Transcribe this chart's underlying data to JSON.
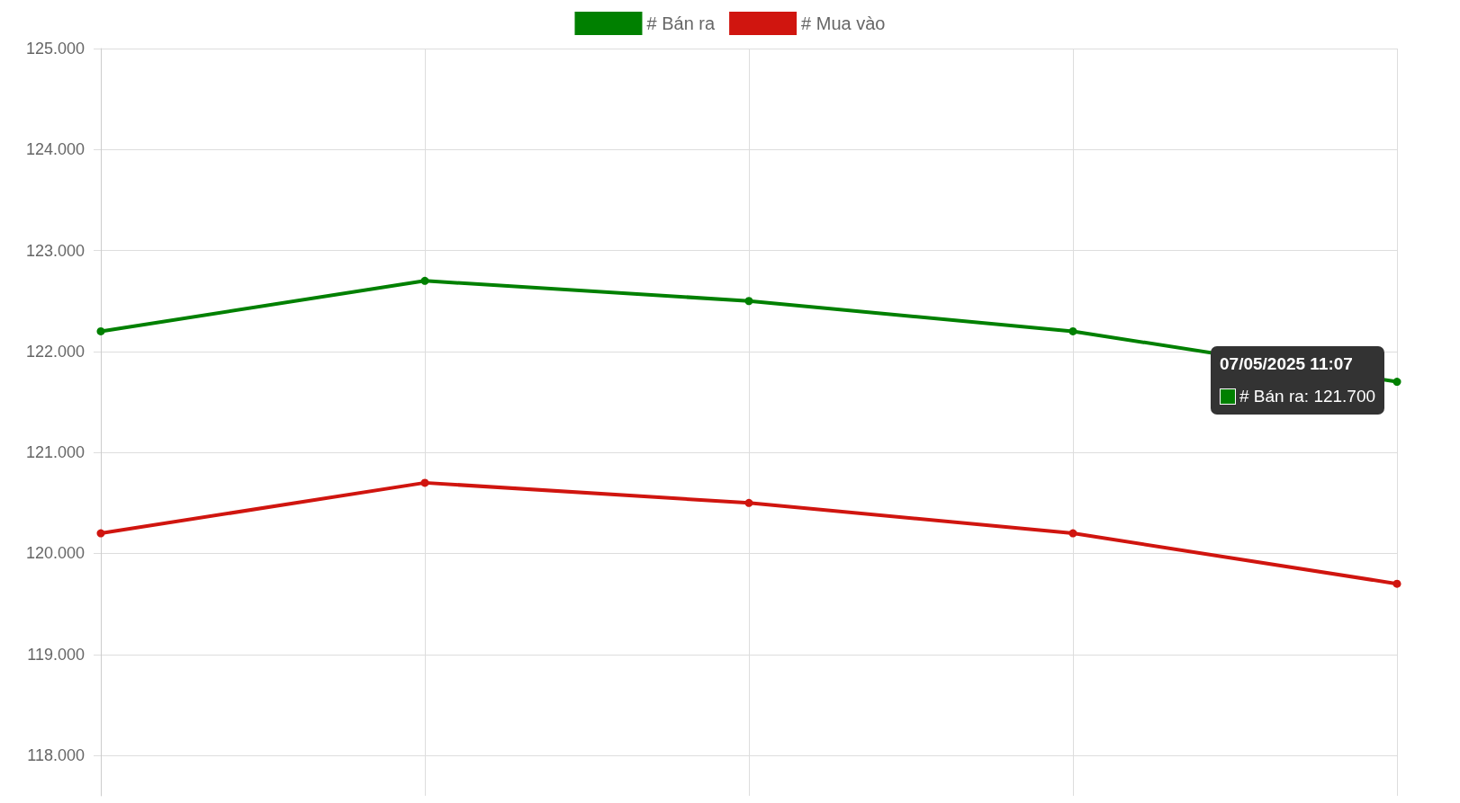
{
  "chart_data": {
    "type": "line",
    "categories": [
      null,
      null,
      null,
      null,
      null
    ],
    "series": [
      {
        "name": "# Bán ra",
        "color": "#008000",
        "values": [
          122200,
          122700,
          122500,
          122200,
          121700
        ]
      },
      {
        "name": "# Mua vào",
        "color": "#d0150f",
        "values": [
          120200,
          120700,
          120500,
          120200,
          119700
        ]
      }
    ],
    "ylim": [
      117600,
      125000
    ],
    "yticks": [
      {
        "value": 118000,
        "label": "118.000"
      },
      {
        "value": 119000,
        "label": "119.000"
      },
      {
        "value": 120000,
        "label": "120.000"
      },
      {
        "value": 121000,
        "label": "121.000"
      },
      {
        "value": 122000,
        "label": "122.000"
      },
      {
        "value": 123000,
        "label": "123.000"
      },
      {
        "value": 124000,
        "label": "124.000"
      },
      {
        "value": 125000,
        "label": "125.000"
      }
    ],
    "grid": true,
    "legend": "top",
    "marker": "circle",
    "line_style": "solid",
    "annotations": [
      "07/05/2025 11:07",
      "# Bán ra: 121.700"
    ]
  }
}
